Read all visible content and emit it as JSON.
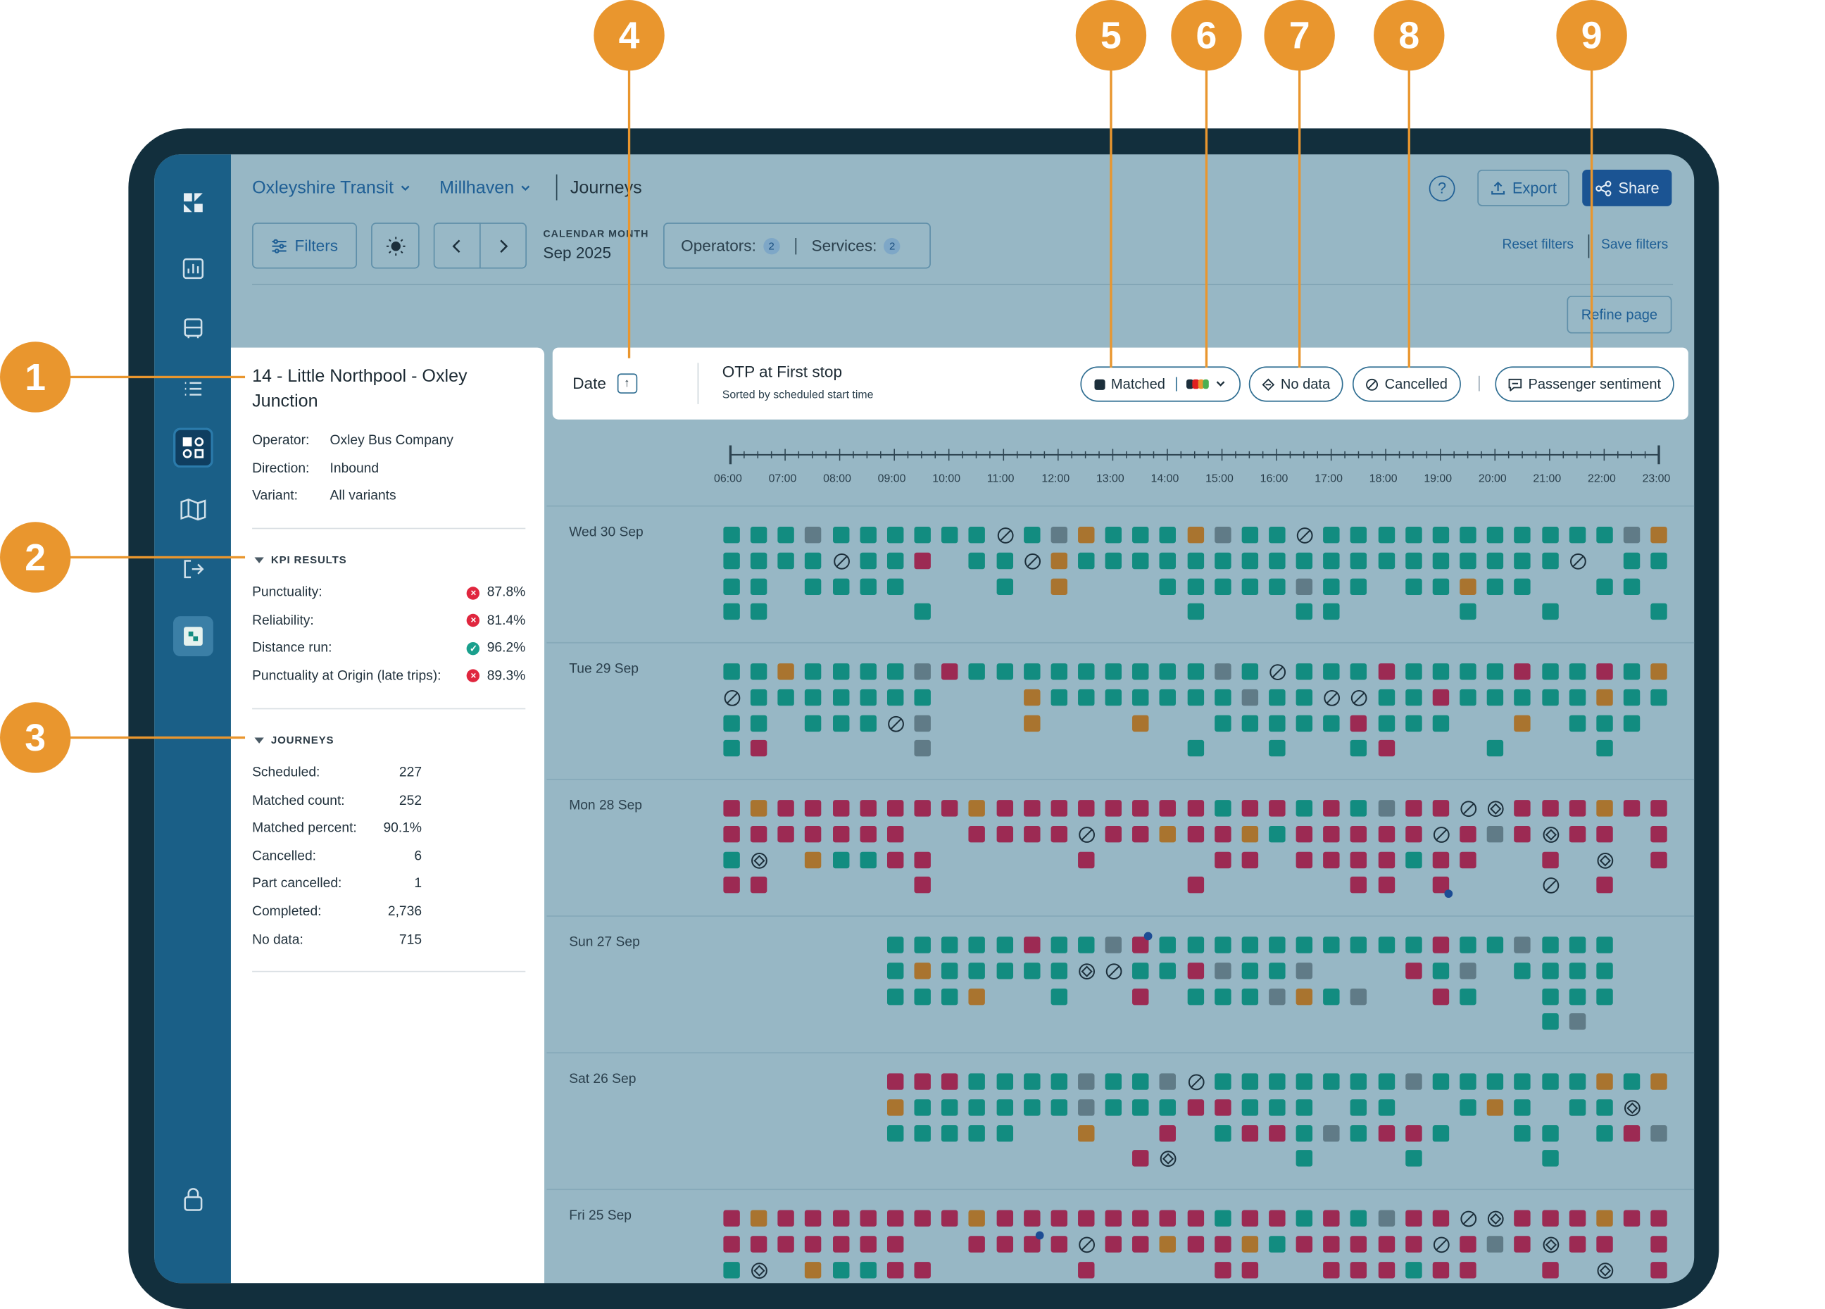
{
  "breadcrumb": {
    "org": "Oxleyshire Transit",
    "area": "Millhaven",
    "page": "Journeys"
  },
  "toolbar": {
    "filters": "Filters",
    "cal_label": "CALENDAR MONTH",
    "cal_value": "Sep 2025",
    "operators": "Operators:",
    "operators_n": "2",
    "services": "Services:",
    "services_n": "2",
    "export": "Export",
    "share": "Share",
    "reset": "Reset filters",
    "save": "Save filters",
    "refine": "Refine page"
  },
  "route": {
    "title": "14 - Little Northpool - Oxley Junction",
    "operator_label": "Operator:",
    "operator": "Oxley Bus Company",
    "direction_label": "Direction:",
    "direction": "Inbound",
    "variant_label": "Variant:",
    "variant": "All variants"
  },
  "kpi": {
    "header": "KPI RESULTS",
    "items": [
      {
        "label": "Punctuality:",
        "value": "87.8%",
        "status": "fail"
      },
      {
        "label": "Reliability:",
        "value": "81.4%",
        "status": "fail"
      },
      {
        "label": "Distance run:",
        "value": "96.2%",
        "status": "pass"
      },
      {
        "label": "Punctuality at Origin (late trips):",
        "value": "89.3%",
        "status": "fail"
      }
    ]
  },
  "journeys": {
    "header": "JOURNEYS",
    "items": [
      {
        "label": "Scheduled:",
        "value": "227"
      },
      {
        "label": "Matched count:",
        "value": "252"
      },
      {
        "label": "Matched percent:",
        "value": "90.1%"
      },
      {
        "label": "Cancelled:",
        "value": "6"
      },
      {
        "label": "Part cancelled:",
        "value": "1"
      },
      {
        "label": "Completed:",
        "value": "2,736"
      },
      {
        "label": "No data:",
        "value": "715"
      }
    ]
  },
  "table_head": {
    "date": "Date",
    "sort_icon": "arrow-up-icon",
    "otp": "OTP at First stop",
    "sorted": "Sorted by scheduled start time",
    "matched": "Matched",
    "nodata": "No data",
    "cancelled": "Cancelled",
    "sentiment": "Passenger sentiment"
  },
  "timeline": {
    "ticks": [
      "06:00",
      "07:00",
      "08:00",
      "09:00",
      "10:00",
      "11:00",
      "12:00",
      "13:00",
      "14:00",
      "15:00",
      "16:00",
      "17:00",
      "18:00",
      "19:00",
      "20:00",
      "21:00",
      "22:00",
      "23:00"
    ]
  },
  "colors": {
    "g": "#128c80",
    "r": "#9c2a53",
    "o": "#a9742f",
    "s": "#607b87",
    "marker": "#1c4c94",
    "accent": "#e9962e"
  },
  "days": [
    {
      "label": "Wed 30 Sep",
      "rows": [
        "gggsggggggcgsogggoslgcgggggggggggsogm",
        "ggggcggr.ggcoggggggggggggggggggc.ggg",
        "gg.gggg...g.o...gggggsgg.ggogg..gg",
        "gg.....g.........g...gg....g..g...g"
      ]
    },
    {
      "label": "Tue 29 Sep",
      "rows": [
        "ggoggggsrgggggggggsgcgggrggggrggrgooogg",
        "cggggggg...ogggggggsggccggrgggggogg.ooo",
        "gg.gggcs...o...o..gggggrggg..o.ggg..gr",
        "gr.....s.........g..g..gr...g...g...o"
      ]
    },
    {
      "label": "Mon 28 Sep",
      "rows": [
        "rorrrrrrrorrrrrrrrgrrgrgsrrcdrrrorrmsrrc",
        "rrrrrrr..rrrrcrrorrogrrrrrcrsrdrr.rrrr",
        "gd.oggrr.....r....rr.rrrrgrr..r.d.r....c.r",
        "rr.....r.........r.....rr.n...c.r.....r"
      ]
    },
    {
      "label": "Sun 27 Sep",
      "rows": [
        "......gggggrggsmggggggggggrggsggg",
        "......gogggggdcggrsggs...rgs.gggg",
        "......gggo..g..r.gggsogs..rg..ggg",
        "..............................gs...r...g"
      ]
    },
    {
      "label": "Sat 26 Sep",
      "rows": [
        "......rrrggggsggscgggggggsggggggogo",
        "......oggggggsgggrrggg.gg..gog.ggd",
        "......ggggg..o..r.grrgsgrrg..gg.grsg",
        "...............rd....g...g....g"
      ]
    },
    {
      "label": "Fri 25 Sep",
      "rows": [
        "rorrrrrrrorrrrrrrrgrrgrgsrrcdrrrorrgsrrc",
        "rrrrrrr..rrmrcrrorrogrrrrrcrsrdrr.rrrr",
        "gd.oggrr.....r....rr..rrrgrr..r.d.r....c.r"
      ]
    }
  ]
}
